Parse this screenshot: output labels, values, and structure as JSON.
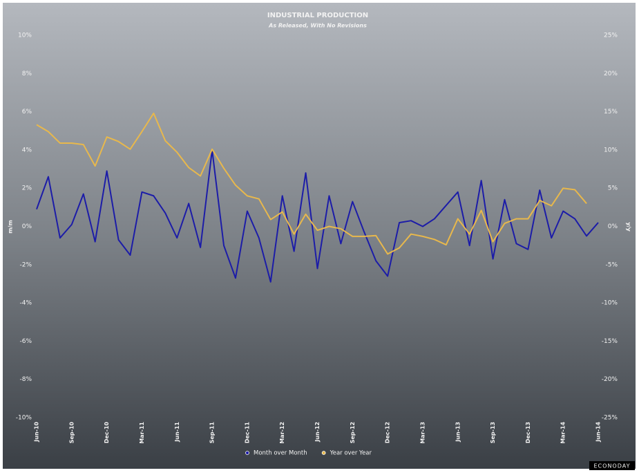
{
  "chart_data": {
    "type": "line",
    "title": "INDUSTRIAL PRODUCTION",
    "subtitle": "As Released, With No Revisions",
    "y_label": "m/m",
    "y2_label": "y/y",
    "watermark": "ECONODAY",
    "categories": [
      "Jun-10",
      null,
      null,
      "Sep-10",
      null,
      null,
      "Dec-10",
      null,
      null,
      "Mar-11",
      null,
      null,
      "Jun-11",
      null,
      null,
      "Sep-11",
      null,
      null,
      "Dec-11",
      null,
      null,
      "Mar-12",
      null,
      null,
      "Jun-12",
      null,
      null,
      "Sep-12",
      null,
      null,
      "Dec-12",
      null,
      null,
      "Mar-13",
      null,
      null,
      "Jun-13",
      null,
      null,
      "Sep-13",
      null,
      null,
      "Dec-13",
      null,
      null,
      "Mar-14",
      null,
      null,
      "Jun-14"
    ],
    "series": [
      {
        "name": "Month over Month",
        "color": "#1c1ca8",
        "axis": "y",
        "values": [
          0.9,
          2.6,
          -0.6,
          0.1,
          1.7,
          -0.8,
          2.9,
          -0.7,
          -1.5,
          1.8,
          1.6,
          0.7,
          -0.6,
          1.2,
          -1.1,
          4.0,
          -1.0,
          -2.7,
          0.8,
          -0.6,
          -2.9,
          1.6,
          -1.3,
          2.8,
          -2.2,
          1.6,
          -0.9,
          1.3,
          -0.3,
          -1.8,
          -2.6,
          0.2,
          0.3,
          0.0,
          0.4,
          1.1,
          1.8,
          -1.0,
          2.4,
          -1.7,
          1.4,
          -0.9,
          -1.2,
          1.9,
          -0.6,
          0.8,
          0.4,
          -0.5,
          0.2
        ]
      },
      {
        "name": "Year over Year",
        "color": "#e8b84c",
        "axis": "y2",
        "values": [
          13.3,
          12.4,
          10.9,
          10.9,
          10.7,
          7.9,
          11.7,
          11.1,
          10.1,
          12.4,
          14.8,
          11.2,
          9.7,
          7.7,
          6.6,
          10.1,
          7.6,
          5.4,
          4.0,
          3.6,
          0.9,
          1.9,
          -1.0,
          1.6,
          -0.5,
          0.0,
          -0.3,
          -1.3,
          -1.3,
          -1.2,
          -3.6,
          -2.8,
          -1.0,
          -1.3,
          -1.7,
          -2.4,
          1.0,
          -1.0,
          2.1,
          -2.0,
          0.4,
          1.0,
          1.0,
          3.4,
          2.7,
          5.0,
          4.8,
          3.0,
          null
        ]
      }
    ],
    "ylim": [
      -10,
      10
    ],
    "yticks": [
      {
        "value": -10,
        "label": "-10%"
      },
      {
        "value": -8,
        "label": "-8%"
      },
      {
        "value": -6,
        "label": "-6%"
      },
      {
        "value": -4,
        "label": "-4%"
      },
      {
        "value": -2,
        "label": "-2%"
      },
      {
        "value": 0,
        "label": "0%"
      },
      {
        "value": 2,
        "label": "2%"
      },
      {
        "value": 4,
        "label": "4%"
      },
      {
        "value": 6,
        "label": "6%"
      },
      {
        "value": 8,
        "label": "8%"
      },
      {
        "value": 10,
        "label": "10%"
      }
    ],
    "y2lim": [
      -25,
      25
    ],
    "y2ticks": [
      {
        "value": -25,
        "label": "-25%"
      },
      {
        "value": -20,
        "label": "-20%"
      },
      {
        "value": -15,
        "label": "-15%"
      },
      {
        "value": -10,
        "label": "-10%"
      },
      {
        "value": -5,
        "label": "-5%"
      },
      {
        "value": 0,
        "label": "0%"
      },
      {
        "value": 5,
        "label": "5%"
      },
      {
        "value": 10,
        "label": "10%"
      },
      {
        "value": 15,
        "label": "15%"
      },
      {
        "value": 20,
        "label": "20%"
      },
      {
        "value": 25,
        "label": "25%"
      }
    ],
    "grid": false,
    "legend": "bottom"
  }
}
